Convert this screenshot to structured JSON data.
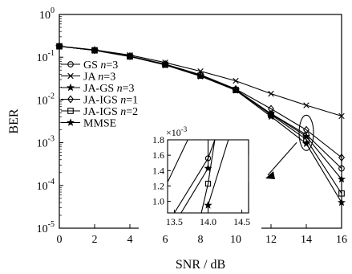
{
  "chart_data": [
    {
      "type": "line",
      "xlabel": "SNR / dB",
      "ylabel": "BER",
      "y_scale": "log",
      "xlim": [
        0,
        16
      ],
      "ylim": [
        1e-05,
        1
      ],
      "x_ticks": [
        0,
        2,
        4,
        6,
        8,
        10,
        12,
        14,
        16
      ],
      "x_tick_labels": [
        "0",
        "2",
        "4",
        "6",
        "8",
        "10",
        "12",
        "14",
        "16"
      ],
      "y_ticks": [
        {
          "value": 1,
          "base": "10",
          "exp": "0"
        },
        {
          "value": 0.1,
          "base": "10",
          "exp": "-1"
        },
        {
          "value": 0.01,
          "base": "10",
          "exp": "-2"
        },
        {
          "value": 0.001,
          "base": "10",
          "exp": "-3"
        },
        {
          "value": 0.0001,
          "base": "10",
          "exp": "-4"
        },
        {
          "value": 1e-05,
          "base": "10",
          "exp": "-5"
        }
      ],
      "grid": false,
      "legend_position": "upper-left",
      "x": [
        0,
        2,
        4,
        6,
        8,
        10,
        12,
        14,
        16
      ],
      "series": [
        {
          "name": "GS n=3",
          "label_main": "GS",
          "label_var": "n",
          "label_val": "=3",
          "marker": "circle",
          "values": [
            0.18,
            0.145,
            0.105,
            0.068,
            0.038,
            0.0175,
            0.0048,
            0.00155,
            0.00025
          ]
        },
        {
          "name": "JA n=3",
          "label_main": "JA",
          "label_var": "n",
          "label_val": "=3",
          "marker": "x",
          "values": [
            0.18,
            0.148,
            0.112,
            0.075,
            0.047,
            0.028,
            0.014,
            0.0075,
            0.0042
          ]
        },
        {
          "name": "JA-GS n=3",
          "label_main": "JA-GS",
          "label_var": "n",
          "label_val": "=3",
          "marker": "star",
          "values": [
            0.18,
            0.145,
            0.104,
            0.067,
            0.037,
            0.0172,
            0.0047,
            0.0014,
            0.00014
          ]
        },
        {
          "name": "JA-IGS n=1",
          "label_main": "JA-IGS",
          "label_var": "n",
          "label_val": "=1",
          "marker": "diamond",
          "values": [
            0.18,
            0.146,
            0.106,
            0.069,
            0.039,
            0.018,
            0.0062,
            0.002,
            0.00045
          ]
        },
        {
          "name": "JA-IGS n=2",
          "label_main": "JA-IGS",
          "label_var": "n",
          "label_val": "=2",
          "marker": "square",
          "values": [
            0.18,
            0.145,
            0.104,
            0.067,
            0.037,
            0.0171,
            0.0045,
            0.0012,
            6.5e-05
          ]
        },
        {
          "name": "MMSE",
          "label_main": "MMSE",
          "label_var": "",
          "label_val": "",
          "marker": "star",
          "values": [
            0.18,
            0.145,
            0.104,
            0.066,
            0.036,
            0.0168,
            0.0041,
            0.00095,
            4e-05
          ]
        }
      ]
    },
    {
      "type": "line",
      "role": "inset",
      "xlim": [
        13.4,
        14.6
      ],
      "ylim": [
        0.85,
        1.8
      ],
      "y_multiplier": {
        "prefix": "×10",
        "exp": "-3"
      },
      "x_ticks": [
        13.5,
        14.0,
        14.5
      ],
      "x_tick_labels": [
        "13.5",
        "14.0",
        "14.5"
      ],
      "y_ticks": [
        1.0,
        1.2,
        1.4,
        1.6,
        1.8
      ],
      "y_tick_labels": [
        "1.0",
        "1.2",
        "1.4",
        "1.6",
        "1.8"
      ],
      "series": [
        {
          "marker": "none",
          "points": [
            [
              13.7,
              1.8
            ],
            [
              13.4,
              1.25
            ]
          ]
        },
        {
          "marker": "circle",
          "points": [
            [
              14.1,
              1.8
            ],
            [
              14.0,
              1.56
            ],
            [
              13.5,
              0.85
            ]
          ]
        },
        {
          "marker": "star",
          "points": [
            [
              14.0,
              1.8
            ],
            [
              14.0,
              1.43
            ],
            [
              13.6,
              0.85
            ]
          ]
        },
        {
          "marker": "square",
          "points": [
            [
              14.1,
              1.8
            ],
            [
              14.0,
              1.23
            ],
            [
              13.9,
              0.85
            ]
          ]
        },
        {
          "marker": "star",
          "points": [
            [
              14.3,
              1.8
            ],
            [
              14.0,
              0.95
            ],
            [
              14.0,
              0.85
            ]
          ]
        },
        {
          "marker": "none",
          "points": [
            [
              14.6,
              1.8
            ],
            [
              14.6,
              1.6
            ]
          ]
        },
        {
          "marker": "none",
          "points": [
            [
              14.6,
              1.25
            ],
            [
              14.6,
              0.85
            ]
          ]
        }
      ]
    }
  ]
}
